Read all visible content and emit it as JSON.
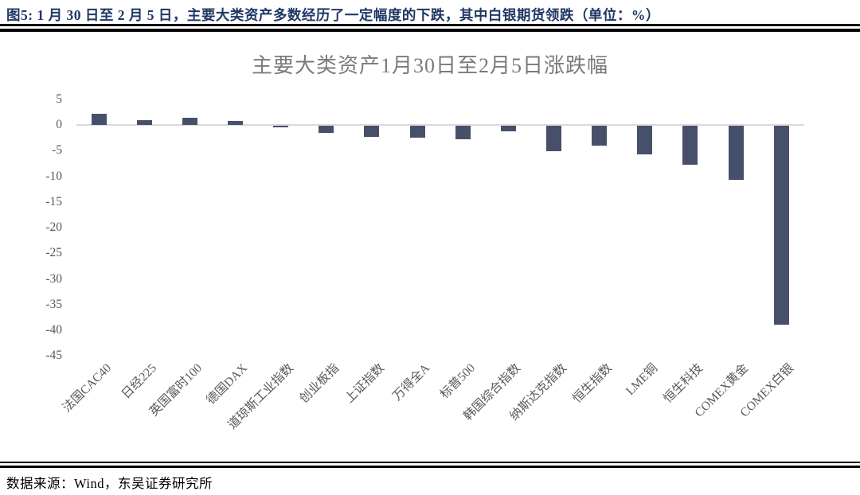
{
  "header": {
    "title": "图5:  1 月 30 日至 2 月 5 日，主要大类资产多数经历了一定幅度的下跌，其中白银期货领跌（单位：%）"
  },
  "chart_data": {
    "type": "bar",
    "title": "主要大类资产1月30日至2月5日涨跌幅",
    "categories": [
      "法国CAC40",
      "日经225",
      "英国富时100",
      "德国DAX",
      "道琼斯工业指数",
      "创业板指",
      "上证指数",
      "万得全A",
      "标普500",
      "韩国综合指数",
      "纳斯达克指数",
      "恒生指数",
      "LME铜",
      "恒生科技",
      "COMEX黄金",
      "COMEX白银"
    ],
    "values": [
      2.1,
      0.9,
      1.4,
      0.8,
      -0.3,
      -1.4,
      -2.1,
      -2.4,
      -2.6,
      -1.1,
      -5.0,
      -3.8,
      -5.6,
      -7.6,
      -10.5,
      -38.7
    ],
    "unit": "%",
    "ylim": [
      -45,
      5
    ],
    "yticks": [
      5,
      0,
      -5,
      -10,
      -15,
      -20,
      -25,
      -30,
      -35,
      -40,
      -45
    ],
    "xlabel": "",
    "ylabel": "",
    "grid": false,
    "legend_position": "none",
    "bar_color": "#47506B",
    "zero_line_color": "#D9D9D9"
  },
  "footer": {
    "source": "数据来源：Wind，东吴证券研究所"
  },
  "colors": {
    "header_text": "#1F3864",
    "chart_title_text": "#7A7A7A",
    "axis_label_text": "#595959",
    "divider": "#000000"
  }
}
